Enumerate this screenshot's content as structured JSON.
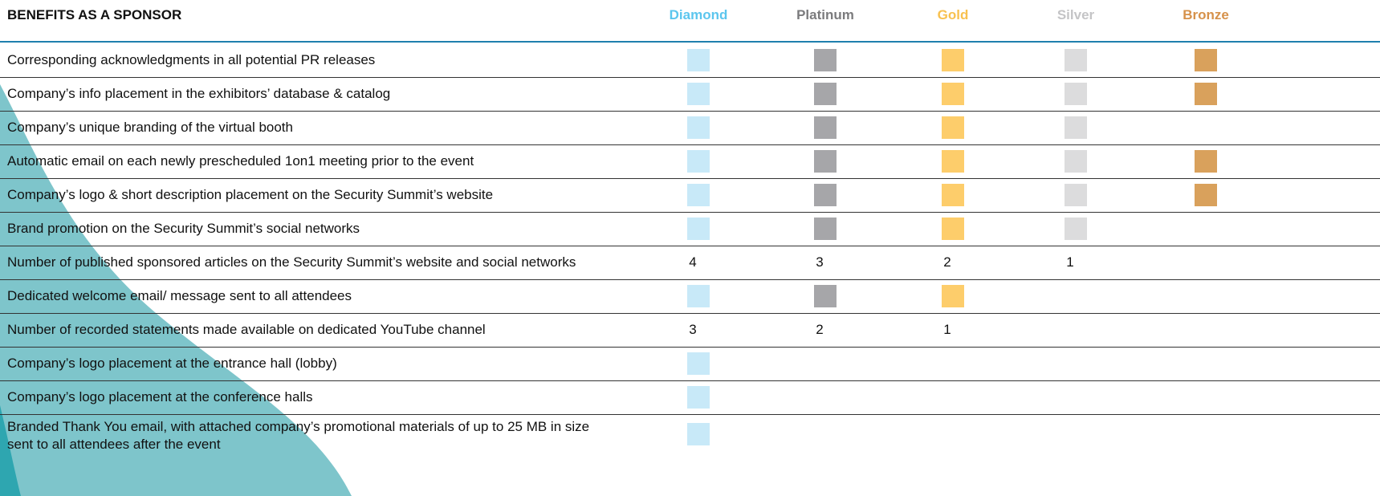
{
  "header": {
    "title": "BENEFITS AS A SPONSOR",
    "tiers": [
      {
        "name": "Diamond",
        "color": "#5cc6ee",
        "fill": "#c8e9f8"
      },
      {
        "name": "Platinum",
        "color": "#7b7b7d",
        "fill": "#a6a6a9"
      },
      {
        "name": "Gold",
        "color": "#f8c14f",
        "fill": "#fdcd6b"
      },
      {
        "name": "Silver",
        "color": "#c4c4c6",
        "fill": "#dcdcdd"
      },
      {
        "name": "Bronze",
        "color": "#d6914a",
        "fill": "#d9a15c"
      }
    ]
  },
  "table": {
    "rows": [
      {
        "benefit": "Corresponding acknowledgments in all potential PR releases",
        "cells": [
          true,
          true,
          true,
          true,
          true
        ]
      },
      {
        "benefit": "Company’s info placement in the exhibitors’ database & catalog",
        "cells": [
          true,
          true,
          true,
          true,
          true
        ]
      },
      {
        "benefit": "Company’s unique branding of the virtual booth",
        "cells": [
          true,
          true,
          true,
          true,
          null
        ]
      },
      {
        "benefit": "Automatic email on each newly prescheduled 1on1 meeting prior to the event",
        "cells": [
          true,
          true,
          true,
          true,
          true
        ]
      },
      {
        "benefit": "Company’s logo & short description placement on the Security Summit’s website",
        "cells": [
          true,
          true,
          true,
          true,
          true
        ]
      },
      {
        "benefit": "Brand promotion on the Security Summit’s social networks",
        "cells": [
          true,
          true,
          true,
          true,
          null
        ]
      },
      {
        "benefit": "Number of published sponsored articles on the Security Summit’s website and social networks",
        "cells": [
          4,
          3,
          2,
          1,
          null
        ]
      },
      {
        "benefit": "Dedicated welcome email/ message sent to all attendees",
        "cells": [
          true,
          true,
          true,
          null,
          null
        ]
      },
      {
        "benefit": "Number of recorded statements made available on dedicated YouTube channel",
        "cells": [
          3,
          2,
          1,
          null,
          null
        ]
      },
      {
        "benefit": "Company’s logo placement at the entrance hall (lobby)",
        "cells": [
          true,
          null,
          null,
          null,
          null
        ]
      },
      {
        "benefit": "Company’s logo placement at the conference halls",
        "cells": [
          true,
          null,
          null,
          null,
          null
        ]
      },
      {
        "benefit": "Branded Thank You email, with attached company’s promotional materials of up to 25 MB in size sent to all attendees after the event",
        "cells": [
          true,
          null,
          null,
          null,
          null
        ]
      }
    ]
  }
}
